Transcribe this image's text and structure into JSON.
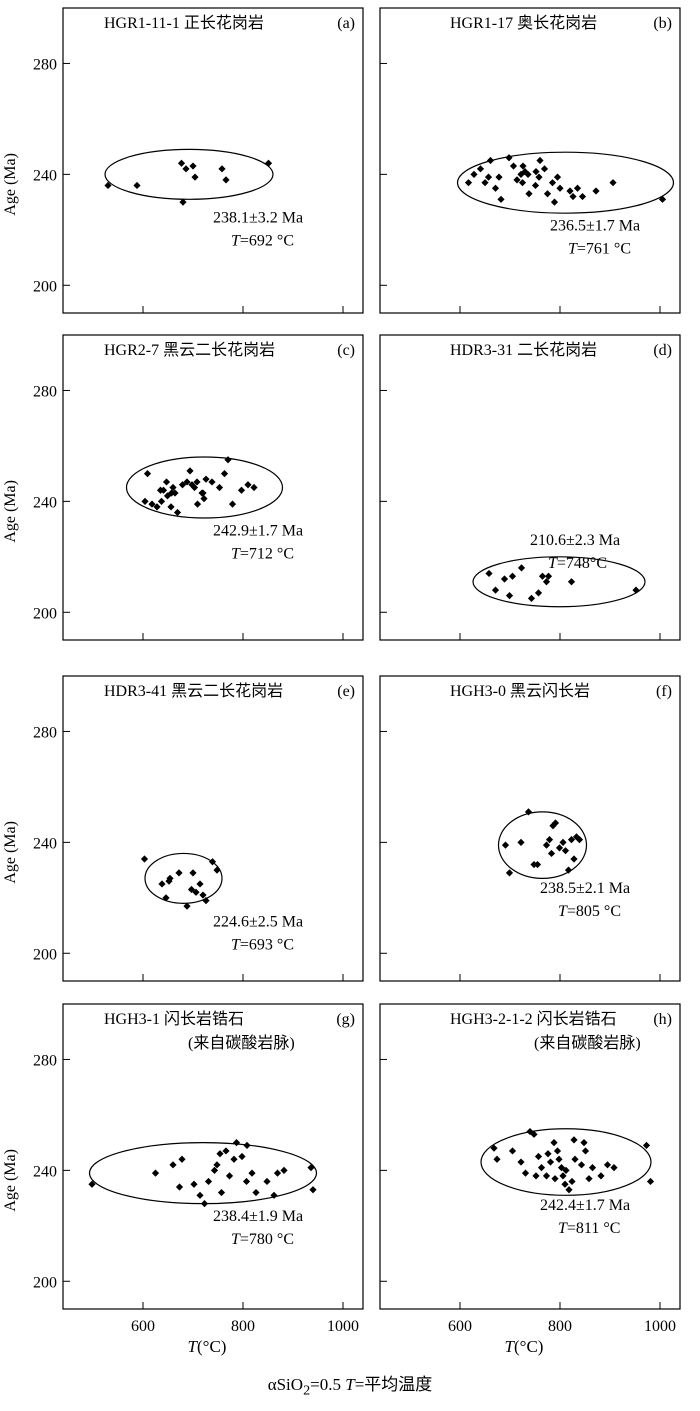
{
  "figure": {
    "ylabel": "Age (Ma)",
    "xlabel_symbol": "T",
    "xlabel_unit": "(°C)",
    "xticks": [
      600,
      800,
      1000
    ],
    "yticks": [
      200,
      240,
      280
    ],
    "xlim": [
      440,
      1040
    ],
    "ylim": [
      190,
      300
    ],
    "caption_prefix": "αSiO",
    "caption_sub": "2",
    "caption_mid": "=0.5  ",
    "caption_T": "T",
    "caption_suffix": "=平均温度"
  },
  "chart_data": [
    {
      "type": "scatter",
      "panel": "(a)",
      "title": "HGR1-11-1 正长花岗岩",
      "age_text": "238.1±3.2 Ma",
      "temp_T": "T",
      "temp_text": "=692 °C",
      "points": [
        [
          530,
          236
        ],
        [
          588,
          236
        ],
        [
          677,
          244
        ],
        [
          686,
          242
        ],
        [
          700,
          243
        ],
        [
          704,
          239
        ],
        [
          758,
          242
        ],
        [
          766,
          238
        ],
        [
          680,
          230
        ],
        [
          851,
          244
        ]
      ],
      "ellipse": {
        "cx": 692,
        "cy": 240,
        "rx": 168,
        "ry": 9
      }
    },
    {
      "type": "scatter",
      "panel": "(b)",
      "title": "HGR1-17 奥长花岗岩",
      "age_text": "236.5±1.7 Ma",
      "temp_T": "T",
      "temp_text": "=761 °C",
      "points": [
        [
          617,
          237
        ],
        [
          628,
          240
        ],
        [
          641,
          242
        ],
        [
          650,
          237
        ],
        [
          657,
          239
        ],
        [
          661,
          245
        ],
        [
          671,
          235
        ],
        [
          678,
          239
        ],
        [
          682,
          231
        ],
        [
          698,
          246
        ],
        [
          707,
          243
        ],
        [
          714,
          238
        ],
        [
          722,
          240
        ],
        [
          725,
          237
        ],
        [
          726,
          243
        ],
        [
          730,
          241
        ],
        [
          738,
          233
        ],
        [
          751,
          236
        ],
        [
          752,
          241
        ],
        [
          758,
          239
        ],
        [
          769,
          242
        ],
        [
          775,
          233
        ],
        [
          785,
          237
        ],
        [
          789,
          230
        ],
        [
          795,
          239
        ],
        [
          800,
          235
        ],
        [
          820,
          234
        ],
        [
          826,
          232
        ],
        [
          835,
          235
        ],
        [
          845,
          232
        ],
        [
          872,
          234
        ],
        [
          906,
          237
        ],
        [
          1005,
          231
        ],
        [
          736,
          240
        ],
        [
          760,
          245
        ]
      ],
      "ellipse": {
        "cx": 811,
        "cy": 237,
        "rx": 216,
        "ry": 11
      }
    },
    {
      "type": "scatter",
      "panel": "(c)",
      "title": "HGR2-7 黑云二长花岗岩",
      "age_text": "242.9±1.7 Ma",
      "temp_T": "T",
      "temp_text": "=712 °C",
      "points": [
        [
          604,
          240
        ],
        [
          609,
          250
        ],
        [
          618,
          239
        ],
        [
          628,
          238
        ],
        [
          635,
          244
        ],
        [
          637,
          240
        ],
        [
          641,
          244
        ],
        [
          647,
          247
        ],
        [
          649,
          242
        ],
        [
          657,
          243
        ],
        [
          660,
          245
        ],
        [
          664,
          243
        ],
        [
          669,
          236
        ],
        [
          679,
          246
        ],
        [
          688,
          247
        ],
        [
          694,
          251
        ],
        [
          698,
          246
        ],
        [
          703,
          245
        ],
        [
          708,
          247
        ],
        [
          709,
          239
        ],
        [
          718,
          243
        ],
        [
          720,
          243
        ],
        [
          722,
          241
        ],
        [
          726,
          248
        ],
        [
          738,
          247
        ],
        [
          753,
          245
        ],
        [
          763,
          250
        ],
        [
          770,
          255
        ],
        [
          779,
          239
        ],
        [
          797,
          244
        ],
        [
          810,
          246
        ],
        [
          822,
          245
        ],
        [
          656,
          238
        ]
      ],
      "ellipse": {
        "cx": 723,
        "cy": 245,
        "rx": 156,
        "ry": 11
      }
    },
    {
      "type": "scatter",
      "panel": "(d)",
      "title": "HDR3-31 二长花岗岩",
      "age_text": "210.6±2.3 Ma",
      "temp_T": "T",
      "temp_text": "=748°C",
      "points": [
        [
          658,
          214
        ],
        [
          671,
          208
        ],
        [
          689,
          212
        ],
        [
          699,
          206
        ],
        [
          705,
          213
        ],
        [
          723,
          216
        ],
        [
          743,
          205
        ],
        [
          757,
          207
        ],
        [
          765,
          213
        ],
        [
          773,
          211
        ],
        [
          777,
          213
        ],
        [
          823,
          211
        ],
        [
          952,
          208
        ]
      ],
      "ellipse": {
        "cx": 798,
        "cy": 211,
        "rx": 172,
        "ry": 9
      }
    },
    {
      "type": "scatter",
      "panel": "(e)",
      "title": "HDR3-41 黑云二长花岗岩",
      "age_text": "224.6±2.5 Ma",
      "temp_T": "T",
      "temp_text": "=693 °C",
      "points": [
        [
          603,
          234
        ],
        [
          638,
          225
        ],
        [
          646,
          220
        ],
        [
          654,
          227
        ],
        [
          672,
          229
        ],
        [
          688,
          217
        ],
        [
          697,
          223
        ],
        [
          700,
          229
        ],
        [
          706,
          222
        ],
        [
          714,
          225
        ],
        [
          720,
          221
        ],
        [
          726,
          219
        ],
        [
          739,
          233
        ],
        [
          748,
          230
        ],
        [
          652,
          226
        ]
      ],
      "ellipse": {
        "cx": 681,
        "cy": 227,
        "rx": 77,
        "ry": 9
      }
    },
    {
      "type": "scatter",
      "panel": "(f)",
      "title": "HGH3-0 黑云闪长岩",
      "age_text": "238.5±2.1 Ma",
      "temp_T": "T",
      "temp_text": "=805 °C",
      "points": [
        [
          691,
          239
        ],
        [
          699,
          229
        ],
        [
          722,
          240
        ],
        [
          737,
          251
        ],
        [
          748,
          232
        ],
        [
          755,
          232
        ],
        [
          773,
          239
        ],
        [
          779,
          241
        ],
        [
          783,
          236
        ],
        [
          786,
          246
        ],
        [
          791,
          247
        ],
        [
          799,
          238
        ],
        [
          806,
          240
        ],
        [
          811,
          237
        ],
        [
          817,
          230
        ],
        [
          823,
          241
        ],
        [
          828,
          234
        ],
        [
          833,
          242
        ],
        [
          839,
          241
        ]
      ],
      "ellipse": {
        "cx": 765,
        "cy": 239,
        "rx": 88,
        "ry": 12
      }
    },
    {
      "type": "scatter",
      "panel": "(g)",
      "title": "HGH3-1  闪长岩锆石",
      "subtitle": "(来自碳酸岩脉)",
      "age_text": "238.4±1.9 Ma",
      "temp_T": "T",
      "temp_text": "=780 °C",
      "points": [
        [
          498,
          235
        ],
        [
          625,
          239
        ],
        [
          660,
          242
        ],
        [
          673,
          234
        ],
        [
          678,
          244
        ],
        [
          702,
          235
        ],
        [
          714,
          231
        ],
        [
          723,
          228
        ],
        [
          731,
          236
        ],
        [
          743,
          240
        ],
        [
          748,
          242
        ],
        [
          754,
          246
        ],
        [
          757,
          232
        ],
        [
          766,
          247
        ],
        [
          773,
          238
        ],
        [
          782,
          244
        ],
        [
          787,
          250
        ],
        [
          798,
          245
        ],
        [
          807,
          236
        ],
        [
          818,
          239
        ],
        [
          826,
          232
        ],
        [
          848,
          236
        ],
        [
          862,
          231
        ],
        [
          869,
          239
        ],
        [
          882,
          240
        ],
        [
          936,
          241
        ],
        [
          940,
          233
        ],
        [
          808,
          249
        ]
      ],
      "ellipse": {
        "cx": 720,
        "cy": 239,
        "rx": 227,
        "ry": 11
      }
    },
    {
      "type": "scatter",
      "panel": "(h)",
      "title": "HGH3-2-1-2  闪长岩锆石",
      "subtitle": "(来自碳酸岩脉)",
      "age_text": "242.4±1.7 Ma",
      "temp_T": "T",
      "temp_text": "=811 °C",
      "points": [
        [
          668,
          248
        ],
        [
          674,
          244
        ],
        [
          705,
          247
        ],
        [
          722,
          243
        ],
        [
          731,
          239
        ],
        [
          740,
          254
        ],
        [
          748,
          253
        ],
        [
          757,
          245
        ],
        [
          763,
          241
        ],
        [
          773,
          238
        ],
        [
          776,
          246
        ],
        [
          781,
          243
        ],
        [
          788,
          250
        ],
        [
          795,
          247
        ],
        [
          798,
          244
        ],
        [
          803,
          241
        ],
        [
          806,
          238
        ],
        [
          812,
          240
        ],
        [
          818,
          233
        ],
        [
          824,
          236
        ],
        [
          830,
          244
        ],
        [
          843,
          242
        ],
        [
          848,
          250
        ],
        [
          851,
          247
        ],
        [
          858,
          237
        ],
        [
          865,
          241
        ],
        [
          882,
          238
        ],
        [
          895,
          242
        ],
        [
          908,
          241
        ],
        [
          973,
          249
        ],
        [
          981,
          236
        ],
        [
          810,
          235
        ],
        [
          828,
          251
        ],
        [
          752,
          238
        ],
        [
          790,
          237
        ]
      ],
      "ellipse": {
        "cx": 812,
        "cy": 243,
        "rx": 170,
        "ry": 12
      }
    }
  ]
}
